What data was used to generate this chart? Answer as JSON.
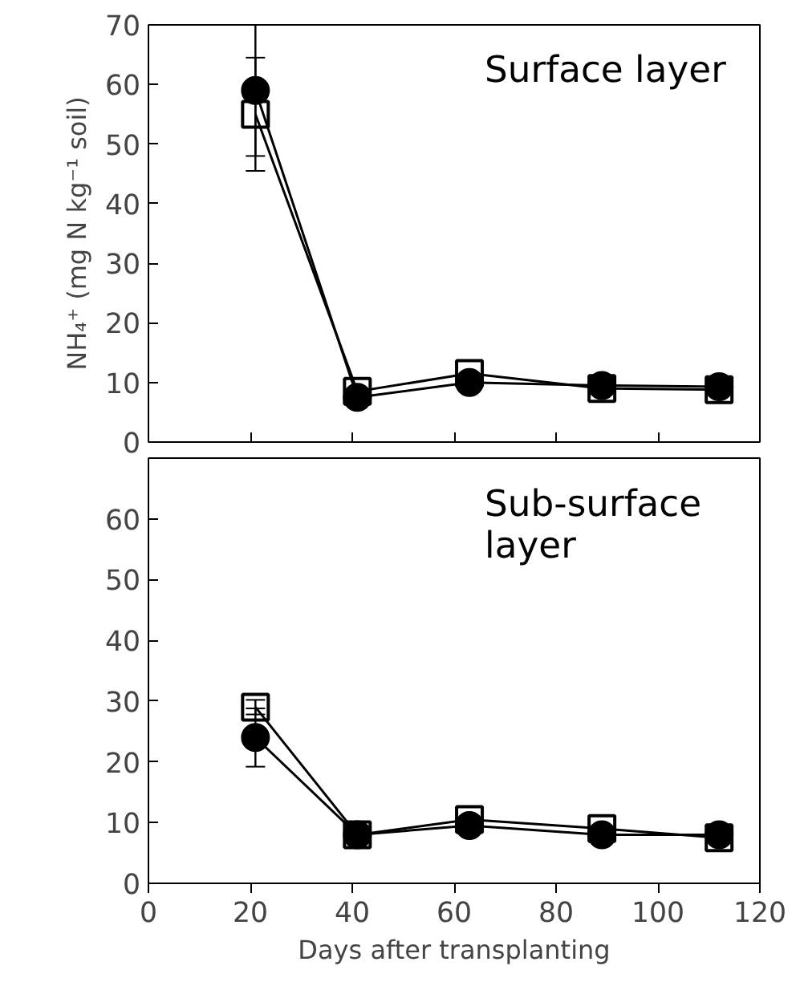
{
  "chart_data": [
    {
      "type": "line",
      "ylabel": "NH₄⁺ (mg N kg⁻¹ soil)",
      "annotations": [
        "Surface layer"
      ],
      "x": [
        21,
        41,
        63,
        89,
        112
      ],
      "xlim": [
        0,
        120
      ],
      "xticks": [
        {
          "value": 0,
          "label": null
        },
        {
          "value": 20,
          "label": null
        },
        {
          "value": 40,
          "label": null
        },
        {
          "value": 60,
          "label": null
        },
        {
          "value": 80,
          "label": null
        },
        {
          "value": 100,
          "label": null
        },
        {
          "value": 120,
          "label": null
        }
      ],
      "ylim": [
        0,
        70
      ],
      "yticks": [
        0,
        10,
        20,
        30,
        40,
        50,
        60,
        70
      ],
      "tick_labels": "y",
      "grid": false,
      "series": [
        {
          "color": "#000000",
          "marker": "square",
          "values": [
            55,
            8.5,
            11.5,
            9,
            8.8
          ],
          "errors": [
            9.5,
            null,
            null,
            null,
            null
          ]
        },
        {
          "color": "#000000",
          "marker": "circle",
          "values": [
            59,
            7.5,
            10,
            9.5,
            9.3
          ],
          "errors": [
            11,
            null,
            null,
            null,
            null
          ]
        }
      ]
    },
    {
      "type": "line",
      "xlabel": "Days after transplanting",
      "annotations": [
        "Sub-surface\nlayer"
      ],
      "x": [
        21,
        41,
        63,
        89,
        112
      ],
      "xlim": [
        0,
        120
      ],
      "xticks": [
        0,
        20,
        40,
        60,
        80,
        100,
        120
      ],
      "ylim": [
        0,
        70
      ],
      "yticks": [
        0,
        10,
        20,
        30,
        40,
        50,
        60
      ],
      "grid": false,
      "series": [
        {
          "color": "#000000",
          "marker": "square",
          "values": [
            29,
            8,
            10.5,
            9,
            7.5
          ],
          "errors": [
            1.2,
            null,
            null,
            null,
            null
          ]
        },
        {
          "color": "#000000",
          "marker": "circle",
          "values": [
            24,
            8,
            9.5,
            8,
            8
          ],
          "errors": [
            4.8,
            null,
            null,
            null,
            null
          ]
        }
      ]
    }
  ]
}
